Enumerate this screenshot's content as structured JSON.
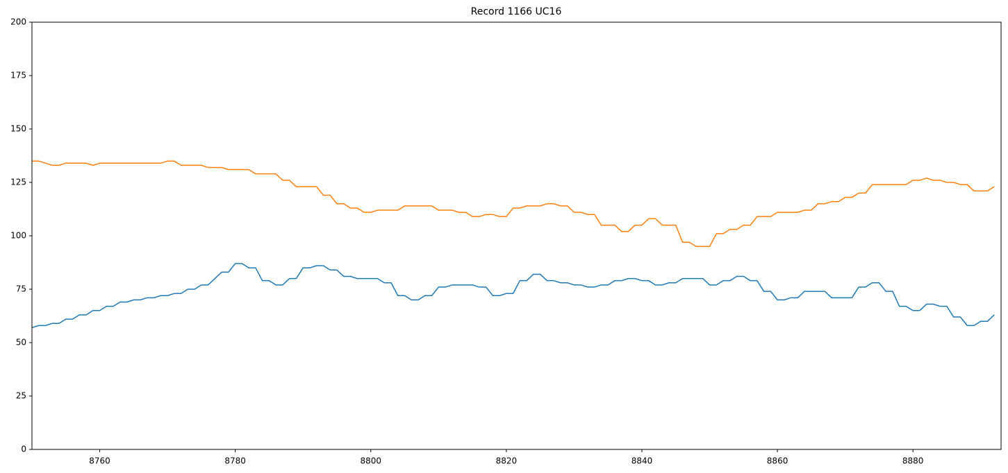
{
  "chart_data": {
    "type": "line",
    "title": "Record 1166 UC16",
    "x": [
      8750,
      8751,
      8752,
      8753,
      8754,
      8755,
      8756,
      8757,
      8758,
      8759,
      8760,
      8761,
      8762,
      8763,
      8764,
      8765,
      8766,
      8767,
      8768,
      8769,
      8770,
      8771,
      8772,
      8773,
      8774,
      8775,
      8776,
      8777,
      8778,
      8779,
      8780,
      8781,
      8782,
      8783,
      8784,
      8785,
      8786,
      8787,
      8788,
      8789,
      8790,
      8791,
      8792,
      8793,
      8794,
      8795,
      8796,
      8797,
      8798,
      8799,
      8800,
      8801,
      8802,
      8803,
      8804,
      8805,
      8806,
      8807,
      8808,
      8809,
      8810,
      8811,
      8812,
      8813,
      8814,
      8815,
      8816,
      8817,
      8818,
      8819,
      8820,
      8821,
      8822,
      8823,
      8824,
      8825,
      8826,
      8827,
      8828,
      8829,
      8830,
      8831,
      8832,
      8833,
      8834,
      8835,
      8836,
      8837,
      8838,
      8839,
      8840,
      8841,
      8842,
      8843,
      8844,
      8845,
      8846,
      8847,
      8848,
      8849,
      8850,
      8851,
      8852,
      8853,
      8854,
      8855,
      8856,
      8857,
      8858,
      8859,
      8860,
      8861,
      8862,
      8863,
      8864,
      8865,
      8866,
      8867,
      8868,
      8869,
      8870,
      8871,
      8872,
      8873,
      8874,
      8875,
      8876,
      8877,
      8878,
      8879,
      8880,
      8881,
      8882,
      8883,
      8884,
      8885,
      8886,
      8887,
      8888,
      8889,
      8890,
      8891,
      8892
    ],
    "series": [
      {
        "color": "#1f77b4",
        "values": [
          57,
          58,
          58,
          59,
          59,
          61,
          61,
          63,
          63,
          65,
          65,
          67,
          67,
          69,
          69,
          70,
          70,
          71,
          71,
          72,
          72,
          73,
          73,
          75,
          75,
          77,
          77,
          80,
          83,
          83,
          87,
          87,
          85,
          85,
          79,
          79,
          77,
          77,
          80,
          80,
          85,
          85,
          86,
          86,
          84,
          84,
          81,
          81,
          80,
          80,
          80,
          80,
          78,
          78,
          72,
          72,
          70,
          70,
          72,
          72,
          76,
          76,
          77,
          77,
          77,
          77,
          76,
          76,
          72,
          72,
          73,
          73,
          79,
          79,
          82,
          82,
          79,
          79,
          78,
          78,
          77,
          77,
          76,
          76,
          77,
          77,
          79,
          79,
          80,
          80,
          79,
          79,
          77,
          77,
          78,
          78,
          80,
          80,
          80,
          80,
          77,
          77,
          79,
          79,
          81,
          81,
          79,
          79,
          74,
          74,
          70,
          70,
          71,
          71,
          74,
          74,
          74,
          74,
          71,
          71,
          71,
          71,
          76,
          76,
          78,
          78,
          74,
          74,
          67,
          67,
          65,
          65,
          68,
          68,
          67,
          67,
          62,
          62,
          58,
          58,
          60,
          60,
          63
        ]
      },
      {
        "color": "#ff7f0e",
        "values": [
          135,
          135,
          134,
          133,
          133,
          134,
          134,
          134,
          134,
          133,
          134,
          134,
          134,
          134,
          134,
          134,
          134,
          134,
          134,
          134,
          135,
          135,
          133,
          133,
          133,
          133,
          132,
          132,
          132,
          131,
          131,
          131,
          131,
          129,
          129,
          129,
          129,
          126,
          126,
          123,
          123,
          123,
          123,
          119,
          119,
          115,
          115,
          113,
          113,
          111,
          111,
          112,
          112,
          112,
          112,
          114,
          114,
          114,
          114,
          114,
          112,
          112,
          112,
          111,
          111,
          109,
          109,
          110,
          110,
          109,
          109,
          113,
          113,
          114,
          114,
          114,
          115,
          115,
          114,
          114,
          111,
          111,
          110,
          110,
          105,
          105,
          105,
          102,
          102,
          105,
          105,
          108,
          108,
          105,
          105,
          105,
          97,
          97,
          95,
          95,
          95,
          101,
          101,
          103,
          103,
          105,
          105,
          109,
          109,
          109,
          111,
          111,
          111,
          111,
          112,
          112,
          115,
          115,
          116,
          116,
          118,
          118,
          120,
          120,
          124,
          124,
          124,
          124,
          124,
          124,
          126,
          126,
          127,
          126,
          126,
          125,
          125,
          124,
          124,
          121,
          121,
          121,
          123
        ]
      }
    ],
    "xlim": [
      8750,
      8893
    ],
    "xticks": [
      8760,
      8780,
      8800,
      8820,
      8840,
      8860,
      8880
    ],
    "ylim": [
      0,
      200
    ],
    "yticks": [
      0,
      25,
      50,
      75,
      100,
      125,
      150,
      175,
      200
    ]
  }
}
